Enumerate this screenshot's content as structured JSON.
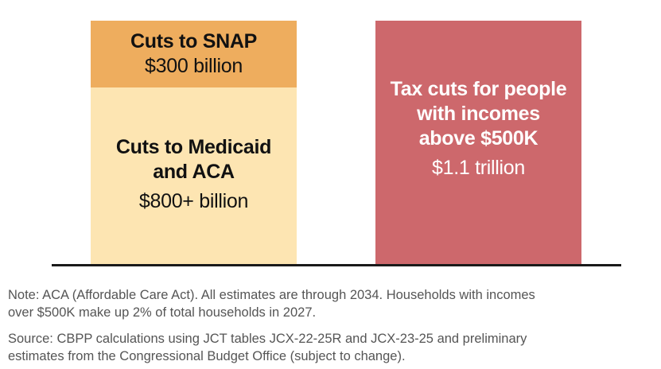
{
  "chart_data": {
    "type": "bar",
    "stacked": true,
    "categories": [
      "",
      ""
    ],
    "series": [
      {
        "label_lines": [
          "Cuts to Medicaid",
          "and ACA"
        ],
        "value_label": "$800+ billion",
        "values": [
          800,
          0
        ],
        "color": "#fde5b2"
      },
      {
        "label_lines": [
          "Cuts to SNAP"
        ],
        "value_label": "$300 billion",
        "values": [
          300,
          0
        ],
        "color": "#eead5e"
      },
      {
        "label_lines": [
          "Tax cuts for people",
          "with incomes",
          "above $500K"
        ],
        "value_label": "$1.1 trillion",
        "values": [
          0,
          1100
        ],
        "color": "#cd686c"
      }
    ],
    "units": "billions of dollars",
    "title": "",
    "xlabel": "",
    "ylabel": "",
    "grid": false,
    "legend": "none"
  },
  "notes": {
    "note_lines": [
      "Note: ACA (Affordable Care Act). All estimates are through 2034. Households with incomes",
      "over $500K make up 2% of total households in 2027."
    ],
    "source_lines": [
      "Source: CBPP calculations using JCT tables JCX-22-25R and JCX-23-25 and preliminary",
      "estimates from the Congressional Budget Office (subject to change)."
    ]
  }
}
